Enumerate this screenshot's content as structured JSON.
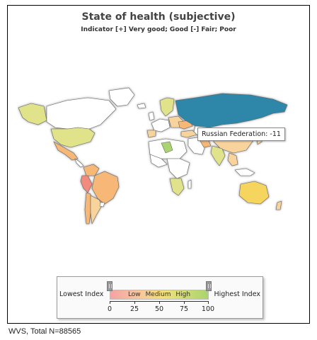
{
  "map": {
    "title": "State of health (subjective)",
    "subtitle": "Indicator [+] Very good; Good [-] Fair; Poor",
    "tooltip": "Russian Federation: -11",
    "colors": {
      "high_negative": "#2f86a8",
      "orange": "#f6b777",
      "light_orange": "#f8d39b",
      "yellow_green": "#d6e07a",
      "green": "#a9d46f",
      "red": "#f28a7e",
      "white": "#ffffff"
    }
  },
  "legend": {
    "lowest_label": "Lowest Index",
    "highest_label": "Highest Index",
    "bar_text": "Low Medium High",
    "ticks": [
      "0",
      "25",
      "50",
      "75",
      "100"
    ]
  },
  "footer": "WVS, Total N=88565"
}
